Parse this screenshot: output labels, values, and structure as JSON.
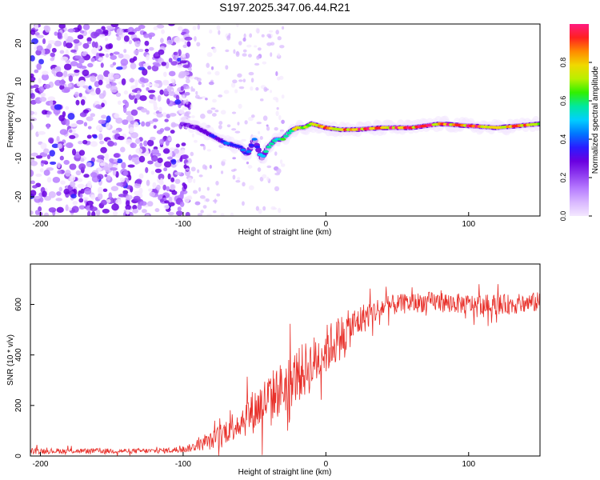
{
  "title": "S197.2025.347.06.44.R21",
  "colors": {
    "snr_line": "#e8302a",
    "axis": "#000000",
    "colormap": [
      "#f4e8ff",
      "#d9b8ff",
      "#b77cff",
      "#8f3cf0",
      "#6a00e0",
      "#2a1cff",
      "#0077ff",
      "#00cfff",
      "#00e8a0",
      "#30f000",
      "#b8f000",
      "#f0d800",
      "#ff8a00",
      "#ff2020",
      "#ff1a80"
    ]
  },
  "chart_data": [
    {
      "type": "heatmap",
      "title": "S197.2025.347.06.44.R21",
      "xlabel": "Height of straight line (km)",
      "ylabel": "Frequency (Hz)",
      "xlim": [
        -207,
        150
      ],
      "ylim": [
        -25,
        25
      ],
      "xticks": [
        -200,
        -100,
        0,
        100
      ],
      "xtick_labels": [
        "-200",
        "-100",
        "0",
        "100"
      ],
      "yticks": [
        -20,
        -10,
        0,
        10,
        20
      ],
      "ytick_labels": [
        "-20",
        "-10",
        "0",
        "10",
        "20"
      ],
      "colorbar": {
        "label": "Normalized spectral amplitude",
        "range": [
          0,
          1
        ],
        "ticks": [
          0.0,
          0.2,
          0.4,
          0.6,
          0.8
        ],
        "tick_labels": [
          "0.0",
          "0.2",
          "0.4",
          "0.6",
          "0.8"
        ]
      },
      "ridge": {
        "x": [
          -100,
          -90,
          -80,
          -70,
          -60,
          -55,
          -50,
          -45,
          -40,
          -35,
          -30,
          -25,
          -20,
          -15,
          -10,
          0,
          10,
          20,
          40,
          60,
          80,
          100,
          120,
          150
        ],
        "freq": [
          -1,
          -2,
          -4,
          -6,
          -7,
          -9,
          -5,
          -10,
          -7,
          -5,
          -5,
          -3,
          -2,
          -2,
          -1,
          -2,
          -2.5,
          -2.5,
          -2,
          -2,
          -1,
          -1.5,
          -2,
          -1
        ],
        "amplitude": [
          0.25,
          0.3,
          0.35,
          0.4,
          0.45,
          0.4,
          0.45,
          0.5,
          0.55,
          0.6,
          0.65,
          0.7,
          0.75,
          0.8,
          0.8,
          0.85,
          0.88,
          0.9,
          0.92,
          0.95,
          0.95,
          0.93,
          0.9,
          0.85
        ]
      },
      "noise_region": {
        "x_range": [
          -207,
          -95
        ],
        "amplitude": [
          0.05,
          0.35
        ]
      }
    },
    {
      "type": "line",
      "xlabel": "Height of straight line (km)",
      "ylabel": "SNR (10 * v/v)",
      "xlim": [
        -207,
        150
      ],
      "ylim": [
        0,
        760
      ],
      "xticks": [
        -200,
        -100,
        0,
        100
      ],
      "xtick_labels": [
        "-200",
        "-100",
        "0",
        "100"
      ],
      "yticks": [
        0,
        200,
        400,
        600
      ],
      "ytick_labels": [
        "0",
        "200",
        "400",
        "600"
      ],
      "series": [
        {
          "name": "SNR",
          "x": [
            -207,
            -180,
            -150,
            -120,
            -100,
            -90,
            -80,
            -70,
            -60,
            -50,
            -40,
            -30,
            -20,
            -10,
            0,
            10,
            20,
            30,
            40,
            50,
            60,
            70,
            80,
            90,
            100,
            110,
            120,
            130,
            140,
            150
          ],
          "y": [
            20,
            20,
            20,
            20,
            25,
            40,
            60,
            100,
            140,
            180,
            230,
            270,
            320,
            360,
            420,
            470,
            520,
            560,
            590,
            600,
            605,
            610,
            610,
            605,
            600,
            600,
            600,
            600,
            605,
            610
          ],
          "noise": [
            12,
            10,
            10,
            10,
            12,
            20,
            35,
            50,
            70,
            90,
            100,
            110,
            110,
            110,
            100,
            90,
            70,
            55,
            45,
            40,
            40,
            40,
            40,
            40,
            40,
            40,
            40,
            40,
            40,
            40
          ]
        }
      ]
    }
  ]
}
